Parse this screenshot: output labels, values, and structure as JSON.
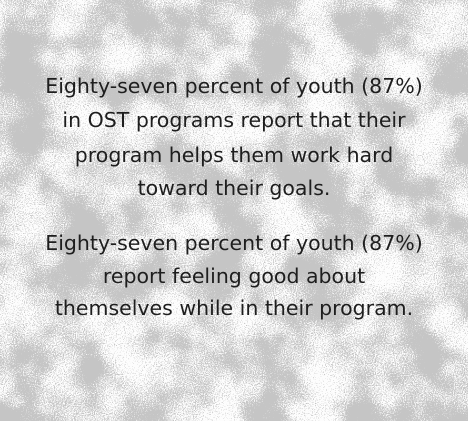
{
  "paragraphs": [
    {
      "lines": [
        "Eighty-seven percent of youth (87%)",
        "in OST programs report that their",
        "program helps them work hard",
        "toward their goals."
      ]
    },
    {
      "lines": [
        "Eighty-seven percent of youth (87%)",
        "report feeling good about",
        "themselves while in their program."
      ]
    }
  ]
}
